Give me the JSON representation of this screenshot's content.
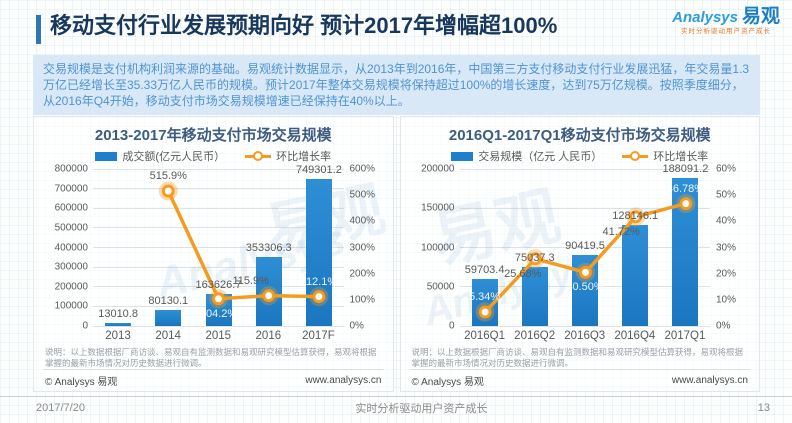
{
  "page": {
    "title": "移动支付行业发展预期向好 预计2017年增幅超100%",
    "logo": {
      "brand_en": "Analysys",
      "brand_cn": "易观",
      "tagline": "实时分析驱动用户资产成长"
    },
    "summary": "交易规模是支付机构利润来源的基础。易观统计数据显示，从2013年到2016年，中国第三方支付移动支付行业发展迅猛，年交易量1.3万亿已经增长至35.33万亿人民币的规模。预计2017年整体交易规模将保持超过100%的增长速度，达到75万亿规模。按照季度细分，从2016年Q4开始，移动支付市场交易规模增速已经保持在40%以上。",
    "footer": {
      "date": "2017/7/20",
      "slogan": "实时分析驱动用户资产成长",
      "page_number": "13"
    }
  },
  "watermark": {
    "en": "Analysys",
    "cn": "易观"
  },
  "colors": {
    "bar": "#1F7FCB",
    "line": "#F49C1F",
    "accent": "#2E75B6",
    "title": "#17375D",
    "summary_bg": "#D9E8F6",
    "summary_text": "#4E94D4"
  },
  "chart_data": [
    {
      "type": "bar+line",
      "title": "2013-2017年移动支付市场交易规模",
      "legend": {
        "bar": "成交额(亿元人民币）",
        "line": "环比增长率"
      },
      "categories": [
        "2013",
        "2014",
        "2015",
        "2016",
        "2017F"
      ],
      "series": [
        {
          "name": "成交额(亿元人民币）",
          "kind": "bar",
          "values": [
            13010.8,
            80130.1,
            163626.7,
            353306.3,
            749301.2
          ],
          "labels": [
            "13010.8",
            "80130.1",
            "163626.7",
            "353306.3",
            "749301.2"
          ]
        },
        {
          "name": "环比增长率",
          "kind": "line",
          "values": [
            null,
            515.9,
            104.2,
            115.9,
            112.1
          ],
          "labels": [
            "",
            "515.9%",
            "104.2%",
            "115.9%",
            "112.1%"
          ],
          "label_pos": [
            "",
            "above",
            "below",
            "above",
            "above"
          ],
          "label_tone": [
            "",
            "dark",
            "light",
            "dark",
            "light"
          ],
          "label_dx": [
            0,
            0,
            0,
            -18,
            0
          ]
        }
      ],
      "ylim": [
        0,
        800000
      ],
      "y_step": 100000,
      "y2lim": [
        0,
        600
      ],
      "y2_step": 100,
      "y2_suffix": "%",
      "grid": true,
      "legend_position": "top",
      "note": "说明：以上数据根据厂商访谈、易观自有监测数据和易观研究模型估算获得，易观将根据掌握的最新市场情况对历史数据进行微调。",
      "copyright": "© Analysys 易观",
      "website": "www.analysys.cn"
    },
    {
      "type": "bar+line",
      "title": "2016Q1-2017Q1移动支付市场交易规模",
      "legend": {
        "bar": "交易规模（亿元 人民币）",
        "line": "环比增长率"
      },
      "categories": [
        "2016Q1",
        "2016Q2",
        "2016Q3",
        "2016Q4",
        "2017Q1"
      ],
      "series": [
        {
          "name": "交易规模（亿元 人民币）",
          "kind": "bar",
          "values": [
            59703.4,
            75037.3,
            90419.5,
            128146.1,
            188091.2
          ],
          "labels": [
            "59703.4",
            "75037.3",
            "90419.5",
            "128146.1",
            "188091.2"
          ]
        },
        {
          "name": "环比增长率",
          "kind": "line",
          "values": [
            5.34,
            25.68,
            20.5,
            41.72,
            46.78
          ],
          "labels": [
            "5.34%",
            "25.68%",
            "20.50%",
            "41.72%",
            "46.78%"
          ],
          "label_pos": [
            "above",
            "below",
            "below",
            "below",
            "above"
          ],
          "label_tone": [
            "light",
            "dark",
            "light",
            "dark",
            "light"
          ],
          "label_dx": [
            0,
            -12,
            0,
            -14,
            0
          ]
        }
      ],
      "ylim": [
        0,
        200000
      ],
      "y_step": 50000,
      "y2lim": [
        0,
        60
      ],
      "y2_step": 10,
      "y2_suffix": "%",
      "grid": true,
      "legend_position": "top",
      "note": "说明：以上数据根据厂商访谈、易观自有监测数据和易观研究模型估算获得，易观将根据掌握的最新市场情况对历史数据进行微调。",
      "copyright": "© Analysys 易观",
      "website": "www.analysys.cn"
    }
  ]
}
